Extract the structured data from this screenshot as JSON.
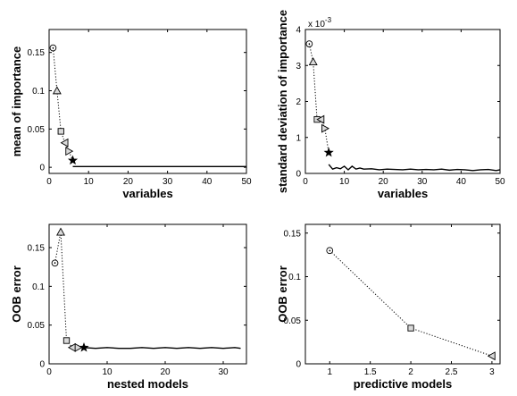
{
  "chart_data": [
    {
      "type": "line",
      "xlabel": "variables",
      "ylabel": "mean of importance",
      "xlim": [
        0,
        50
      ],
      "ylim": [
        -0.008,
        0.18
      ],
      "xticks": [
        0,
        10,
        20,
        30,
        40,
        50
      ],
      "yticks": [
        0,
        0.05,
        0.1,
        0.15
      ],
      "ytick_labels": [
        "0",
        "0.05",
        "0.1",
        "0.15"
      ],
      "exponent_label": "",
      "marker_points": [
        {
          "x": 1,
          "y": 0.156,
          "marker": "circle"
        },
        {
          "x": 2,
          "y": 0.1,
          "marker": "triangle-up"
        },
        {
          "x": 3,
          "y": 0.047,
          "marker": "square"
        },
        {
          "x": 4,
          "y": 0.032,
          "marker": "triangle-left"
        },
        {
          "x": 5,
          "y": 0.021,
          "marker": "triangle-right"
        },
        {
          "x": 6,
          "y": 0.009,
          "marker": "star"
        }
      ],
      "tail": {
        "x": [
          6,
          10,
          15,
          20,
          25,
          30,
          35,
          40,
          45,
          50
        ],
        "y": [
          0.001,
          0.001,
          0.001,
          0.001,
          0.001,
          0.001,
          0.001,
          0.001,
          0.001,
          0.001
        ]
      }
    },
    {
      "type": "line",
      "xlabel": "variables",
      "ylabel": "standard deviation of importance",
      "xlim": [
        0,
        50
      ],
      "ylim": [
        0,
        4
      ],
      "xticks": [
        0,
        10,
        20,
        30,
        40,
        50
      ],
      "yticks": [
        0,
        1,
        2,
        3,
        4
      ],
      "ytick_labels": [
        "0",
        "1",
        "2",
        "3",
        "4"
      ],
      "exponent_label": "x 10",
      "exponent_power": "-3",
      "marker_points": [
        {
          "x": 1,
          "y": 3.6,
          "marker": "circle"
        },
        {
          "x": 2,
          "y": 3.1,
          "marker": "triangle-up"
        },
        {
          "x": 3,
          "y": 1.5,
          "marker": "square"
        },
        {
          "x": 4,
          "y": 1.5,
          "marker": "triangle-left"
        },
        {
          "x": 5,
          "y": 1.25,
          "marker": "triangle-right"
        },
        {
          "x": 6,
          "y": 0.58,
          "marker": "star"
        }
      ],
      "tail": {
        "x": [
          6,
          7,
          8,
          9,
          10,
          11,
          12,
          13,
          14,
          15,
          17,
          19,
          21,
          23,
          25,
          27,
          29,
          31,
          33,
          35,
          37,
          39,
          41,
          43,
          45,
          47,
          49,
          50
        ],
        "y": [
          0.25,
          0.12,
          0.16,
          0.13,
          0.2,
          0.1,
          0.2,
          0.12,
          0.15,
          0.12,
          0.13,
          0.1,
          0.12,
          0.11,
          0.1,
          0.12,
          0.1,
          0.11,
          0.1,
          0.12,
          0.09,
          0.11,
          0.1,
          0.08,
          0.1,
          0.11,
          0.08,
          0.1
        ]
      }
    },
    {
      "type": "line",
      "xlabel": "nested models",
      "ylabel": "OOB error",
      "xlim": [
        0,
        34
      ],
      "ylim": [
        0,
        0.18
      ],
      "xticks": [
        0,
        10,
        20,
        30
      ],
      "yticks": [
        0,
        0.05,
        0.1,
        0.15
      ],
      "ytick_labels": [
        "0",
        "0.05",
        "0.1",
        "0.15"
      ],
      "exponent_label": "",
      "marker_points": [
        {
          "x": 1,
          "y": 0.13,
          "marker": "circle"
        },
        {
          "x": 2,
          "y": 0.17,
          "marker": "triangle-up"
        },
        {
          "x": 3,
          "y": 0.03,
          "marker": "square"
        },
        {
          "x": 4,
          "y": 0.021,
          "marker": "triangle-left"
        },
        {
          "x": 5,
          "y": 0.021,
          "marker": "triangle-right"
        },
        {
          "x": 6,
          "y": 0.021,
          "marker": "star"
        }
      ],
      "tail": {
        "x": [
          6,
          8,
          10,
          12,
          14,
          16,
          18,
          20,
          22,
          24,
          26,
          28,
          30,
          32,
          33
        ],
        "y": [
          0.021,
          0.02,
          0.021,
          0.02,
          0.02,
          0.021,
          0.02,
          0.021,
          0.02,
          0.021,
          0.02,
          0.021,
          0.02,
          0.021,
          0.02
        ]
      }
    },
    {
      "type": "line",
      "xlabel": "predictive models",
      "ylabel": "OOB error",
      "xlim": [
        0.7,
        3.1
      ],
      "ylim": [
        0,
        0.16
      ],
      "xticks": [
        1,
        1.5,
        2,
        2.5,
        3
      ],
      "yticks": [
        0,
        0.05,
        0.1,
        0.15
      ],
      "ytick_labels": [
        "0",
        "0.05",
        "0.1",
        "0.15"
      ],
      "exponent_label": "",
      "marker_points": [
        {
          "x": 1,
          "y": 0.13,
          "marker": "circle"
        },
        {
          "x": 2,
          "y": 0.041,
          "marker": "square"
        },
        {
          "x": 3,
          "y": 0.009,
          "marker": "triangle-left"
        }
      ],
      "tail": {
        "x": [],
        "y": []
      }
    }
  ]
}
